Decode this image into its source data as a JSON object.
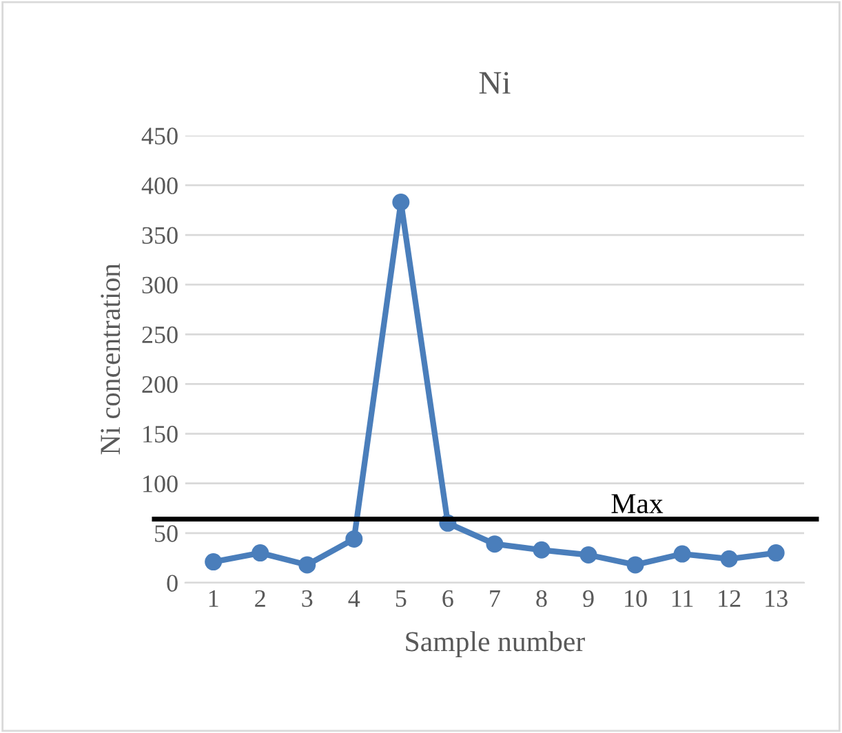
{
  "chart_data": {
    "type": "line",
    "title": "Ni",
    "xlabel": "Sample number",
    "ylabel": "Ni concentration",
    "categories": [
      "1",
      "2",
      "3",
      "4",
      "5",
      "6",
      "7",
      "8",
      "9",
      "10",
      "11",
      "12",
      "13"
    ],
    "series": [
      {
        "color": "#4a7ebb",
        "values": [
          21,
          30,
          18,
          44,
          383,
          60,
          39,
          33,
          28,
          18,
          29,
          24,
          30
        ]
      }
    ],
    "ylim": [
      0,
      450
    ],
    "yticks": [
      0,
      50,
      100,
      150,
      200,
      250,
      300,
      350,
      400,
      450
    ],
    "grid": "y",
    "marker": "circle",
    "line_style": "solid",
    "legend": false,
    "ref_lines": [
      {
        "axis": "y",
        "value": 64,
        "label": "Max",
        "color": "#000000",
        "line_style": "solid"
      }
    ]
  }
}
